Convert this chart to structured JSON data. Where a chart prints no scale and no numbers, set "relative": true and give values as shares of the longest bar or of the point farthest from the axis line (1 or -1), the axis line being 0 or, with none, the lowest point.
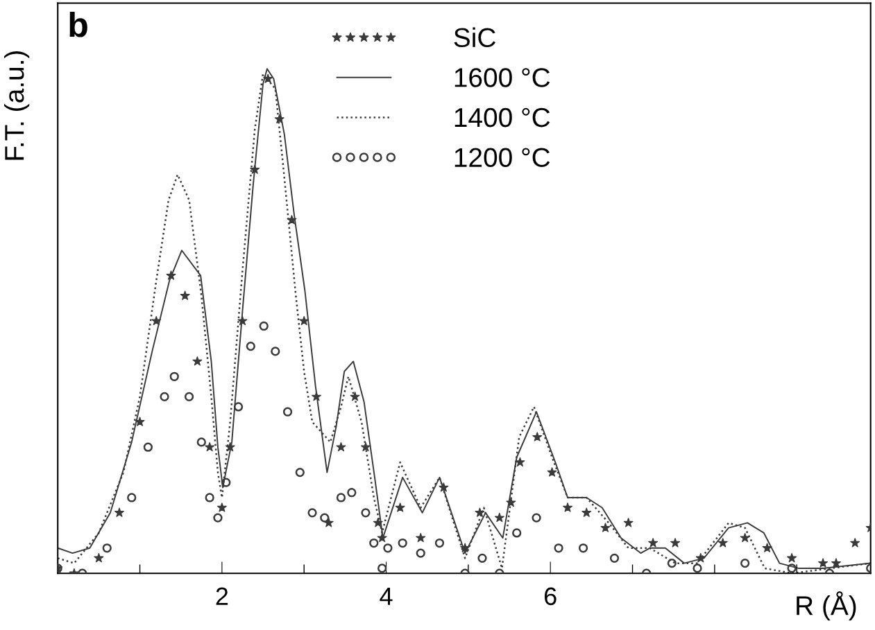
{
  "chart_data": {
    "type": "line",
    "relative": true,
    "xlabel": "R (Å)",
    "ylabel": "F.T. (a.u.)",
    "annotations": [
      "b"
    ],
    "xlim": [
      0,
      9.9
    ],
    "xticks": [
      {
        "value": 1,
        "label": null
      },
      2,
      {
        "value": 3,
        "label": null
      },
      4,
      {
        "value": 5,
        "label": null
      },
      6,
      {
        "value": 7,
        "label": null
      },
      {
        "value": 8,
        "label": null
      },
      {
        "value": 9,
        "label": null
      }
    ],
    "tick_labels": "x",
    "grid": false,
    "legend": "top",
    "series": [
      {
        "name": "SiC",
        "type": "scatter",
        "marker": "star",
        "color": "#3a3a3a",
        "x": [
          0,
          0.2,
          0.5,
          0.75,
          1.0,
          1.2,
          1.38,
          1.55,
          1.7,
          1.85,
          2.0,
          2.1,
          2.25,
          2.4,
          2.56,
          2.7,
          2.85,
          3.0,
          3.15,
          3.3,
          3.45,
          3.62,
          3.75,
          3.9,
          3.95,
          4.17,
          4.42,
          4.7,
          4.96,
          5.14,
          5.38,
          5.52,
          5.63,
          5.84,
          6.02,
          6.21,
          6.44,
          6.67,
          6.95,
          7.25,
          7.52,
          7.83,
          8.1,
          8.37,
          8.64,
          8.94,
          9.32,
          9.48,
          9.71,
          9.9
        ],
        "values": [
          0.01,
          0.0,
          0.03,
          0.12,
          0.3,
          0.5,
          0.59,
          0.55,
          0.42,
          0.25,
          0.13,
          0.25,
          0.5,
          0.8,
          0.98,
          0.9,
          0.7,
          0.5,
          0.35,
          0.1,
          0.25,
          0.35,
          0.25,
          0.1,
          0.07,
          0.13,
          0.07,
          0.17,
          0.05,
          0.12,
          0.11,
          0.14,
          0.22,
          0.27,
          0.2,
          0.13,
          0.12,
          0.09,
          0.1,
          0.06,
          0.06,
          0.03,
          0.06,
          0.07,
          0.05,
          0.03,
          0.02,
          0.02,
          0.06,
          0.09
        ]
      },
      {
        "name": "1600 °C",
        "line_style": "solid",
        "color": "#3a3a3a",
        "x": [
          0,
          0.18,
          0.39,
          0.64,
          0.9,
          1.15,
          1.36,
          1.51,
          1.74,
          1.87,
          1.95,
          2.01,
          2.12,
          2.25,
          2.38,
          2.5,
          2.55,
          2.63,
          2.76,
          2.88,
          3.01,
          3.14,
          3.28,
          3.39,
          3.49,
          3.6,
          3.73,
          3.86,
          3.96,
          4.2,
          4.44,
          4.65,
          4.96,
          5.21,
          5.42,
          5.59,
          5.83,
          6.06,
          6.21,
          6.44,
          6.63,
          6.86,
          7.1,
          7.21,
          7.4,
          7.63,
          7.87,
          8.17,
          8.4,
          8.6,
          8.79,
          9.02,
          9.32,
          9.9
        ],
        "values": [
          0.05,
          0.04,
          0.05,
          0.12,
          0.26,
          0.44,
          0.58,
          0.64,
          0.59,
          0.42,
          0.25,
          0.17,
          0.26,
          0.52,
          0.77,
          0.97,
          1.0,
          0.98,
          0.87,
          0.71,
          0.56,
          0.37,
          0.2,
          0.29,
          0.4,
          0.42,
          0.34,
          0.19,
          0.07,
          0.19,
          0.12,
          0.19,
          0.04,
          0.12,
          0.07,
          0.23,
          0.32,
          0.22,
          0.15,
          0.15,
          0.13,
          0.07,
          0.04,
          0.05,
          0.05,
          0.02,
          0.03,
          0.09,
          0.1,
          0.08,
          0.02,
          0.01,
          0.01,
          0.02
        ]
      },
      {
        "name": "1400 °C",
        "line_style": "dotted",
        "color": "#3a3a3a",
        "x": [
          0,
          0.2,
          0.5,
          0.8,
          1.0,
          1.2,
          1.35,
          1.46,
          1.6,
          1.75,
          1.87,
          1.95,
          2.0,
          2.1,
          2.25,
          2.4,
          2.5,
          2.65,
          2.75,
          2.9,
          3.0,
          3.1,
          3.32,
          3.45,
          3.54,
          3.7,
          3.85,
          3.95,
          4.17,
          4.42,
          4.65,
          4.96,
          5.19,
          5.41,
          5.62,
          5.8,
          6.02,
          6.21,
          6.44,
          6.71,
          6.95,
          7.21,
          7.52,
          7.79,
          8.17,
          8.37,
          8.61,
          8.94,
          9.9
        ],
        "values": [
          0.03,
          0.02,
          0.08,
          0.2,
          0.35,
          0.58,
          0.74,
          0.79,
          0.74,
          0.55,
          0.35,
          0.2,
          0.15,
          0.3,
          0.6,
          0.88,
          0.99,
          0.96,
          0.8,
          0.55,
          0.4,
          0.3,
          0.26,
          0.33,
          0.39,
          0.3,
          0.15,
          0.08,
          0.22,
          0.13,
          0.19,
          0.03,
          0.13,
          0.01,
          0.27,
          0.33,
          0.23,
          0.15,
          0.15,
          0.1,
          0.05,
          0.05,
          0.02,
          0.02,
          0.1,
          0.09,
          0.01,
          0.0,
          0.02
        ]
      },
      {
        "name": "1200 °C",
        "type": "scatter",
        "marker": "circle",
        "color": "#3a3a3a",
        "x": [
          0,
          0.3,
          0.6,
          0.9,
          1.1,
          1.3,
          1.42,
          1.6,
          1.75,
          1.85,
          1.95,
          2.05,
          2.2,
          2.35,
          2.51,
          2.65,
          2.8,
          2.95,
          3.1,
          3.25,
          3.45,
          3.58,
          3.75,
          3.85,
          3.95,
          4.02,
          4.2,
          4.42,
          4.65,
          4.96,
          5.17,
          5.38,
          5.59,
          5.83,
          6.1,
          6.4,
          6.78,
          7.17,
          7.48,
          7.79,
          8.37,
          8.94,
          9.4,
          9.9
        ],
        "values": [
          0.01,
          0.0,
          0.05,
          0.15,
          0.25,
          0.35,
          0.39,
          0.35,
          0.26,
          0.15,
          0.11,
          0.18,
          0.33,
          0.45,
          0.49,
          0.44,
          0.32,
          0.2,
          0.12,
          0.11,
          0.15,
          0.16,
          0.12,
          0.06,
          0.01,
          0.05,
          0.06,
          0.04,
          0.06,
          0.0,
          0.03,
          0.0,
          0.08,
          0.11,
          0.05,
          0.05,
          0.03,
          0.0,
          0.02,
          0.01,
          0.02,
          0.01,
          0.0,
          0.01
        ]
      }
    ]
  }
}
